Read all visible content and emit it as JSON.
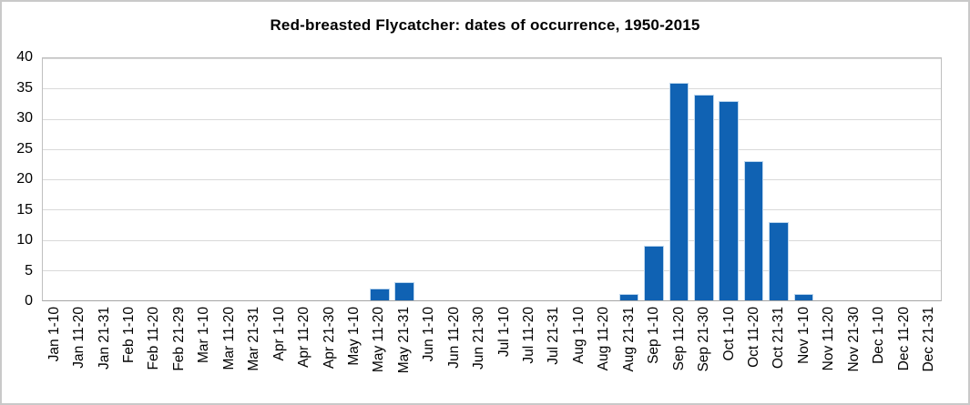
{
  "chart_data": {
    "type": "bar",
    "title": "Red-breasted Flycatcher: dates of occurrence, 1950-2015",
    "categories": [
      "Jan 1-10",
      "Jan 11-20",
      "Jan 21-31",
      "Feb 1-10",
      "Feb 11-20",
      "Feb 21-29",
      "Mar 1-10",
      "Mar 11-20",
      "Mar 21-31",
      "Apr 1-10",
      "Apr 11-20",
      "Apr 21-30",
      "May 1-10",
      "May 11-20",
      "May 21-31",
      "Jun 1-10",
      "Jun 11-20",
      "Jun 21-30",
      "Jul 1-10",
      "Jul 11-20",
      "Jul 21-31",
      "Aug 1-10",
      "Aug 11-20",
      "Aug 21-31",
      "Sep 1-10",
      "Sep 11-20",
      "Sep 21-30",
      "Oct 1-10",
      "Oct 11-20",
      "Oct 21-31",
      "Nov 1-10",
      "Nov 11-20",
      "Nov 21-30",
      "Dec 1-10",
      "Dec 11-20",
      "Dec 21-31"
    ],
    "values": [
      0,
      0,
      0,
      0,
      0,
      0,
      0,
      0,
      0,
      0,
      0,
      0,
      0,
      2,
      3,
      0,
      0,
      0,
      0,
      0,
      0,
      0,
      0,
      1,
      9,
      36,
      34,
      33,
      23,
      13,
      1,
      0,
      0,
      0,
      0,
      0
    ],
    "xlabel": "",
    "ylabel": "",
    "ylim": [
      0,
      40
    ],
    "yticks": [
      0,
      5,
      10,
      15,
      20,
      25,
      30,
      35,
      40
    ],
    "grid": "horizontal",
    "legend": "none",
    "x_label_rotation_degrees": -90,
    "bar_color": "#1062B3",
    "bar_border_color": "#BDD7EE",
    "gridline_color": "#D9D9D9",
    "plot_border_color": "#BFBFBF",
    "axis_line_color": "#A6A6A6",
    "text_color": "#000000"
  }
}
